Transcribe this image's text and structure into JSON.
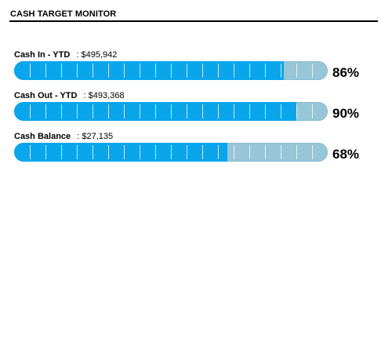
{
  "header": {
    "title": "CASH TARGET MONITOR"
  },
  "metrics": [
    {
      "name": "Cash In - YTD",
      "sep": ":",
      "value": "$495,942",
      "percent_text": "86%",
      "fill": 0.86
    },
    {
      "name": "Cash Out - YTD",
      "sep": ":",
      "value": "$493,368",
      "percent_text": "90%",
      "fill": 0.9
    },
    {
      "name": "Cash Balance",
      "sep": ":",
      "value": "$27,135",
      "percent_text": "68%",
      "fill": 0.68
    }
  ],
  "colors": {
    "fill": "#09a6ec",
    "track": "#97c6d8"
  }
}
